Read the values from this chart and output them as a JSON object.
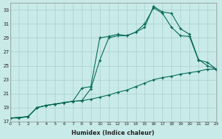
{
  "bg_color": "#c8eae8",
  "grid_color": "#a8ceca",
  "line_color": "#006655",
  "xlim": [
    0,
    23
  ],
  "ylim": [
    17,
    34
  ],
  "xticks": [
    0,
    1,
    2,
    3,
    4,
    5,
    6,
    7,
    8,
    9,
    10,
    11,
    12,
    13,
    14,
    15,
    16,
    17,
    18,
    19,
    20,
    21,
    22,
    23
  ],
  "yticks": [
    17,
    19,
    21,
    23,
    25,
    27,
    29,
    31,
    33
  ],
  "xlabel": "Humidex (Indice chaleur)",
  "s1x": [
    0,
    1,
    2,
    3,
    4,
    5,
    6,
    7,
    8,
    9,
    10,
    11,
    12,
    13,
    14,
    15,
    16,
    17,
    18,
    19,
    20,
    21,
    22,
    23
  ],
  "s1y": [
    17.5,
    17.5,
    17.7,
    19.0,
    19.3,
    19.5,
    19.7,
    19.9,
    21.8,
    22.0,
    29.0,
    29.2,
    29.5,
    29.3,
    29.8,
    31.0,
    33.3,
    32.5,
    30.5,
    29.3,
    29.2,
    25.8,
    25.5,
    24.5
  ],
  "s2x": [
    0,
    2,
    3,
    4,
    5,
    6,
    7,
    8,
    9,
    10,
    11,
    12,
    13,
    14,
    15,
    16,
    17,
    18,
    19,
    20,
    21,
    22,
    23
  ],
  "s2y": [
    17.5,
    17.7,
    19.0,
    19.3,
    19.5,
    19.7,
    19.9,
    20.0,
    21.7,
    25.8,
    29.0,
    29.3,
    29.3,
    29.8,
    30.5,
    33.5,
    32.7,
    32.5,
    30.3,
    29.5,
    25.9,
    25.0,
    24.5
  ],
  "s3x": [
    0,
    2,
    3,
    4,
    5,
    6,
    7,
    8,
    9,
    10,
    11,
    12,
    13,
    14,
    15,
    16,
    17,
    18,
    19,
    20,
    21,
    22,
    23
  ],
  "s3y": [
    17.5,
    17.7,
    19.0,
    19.3,
    19.5,
    19.7,
    19.9,
    20.0,
    20.2,
    20.5,
    20.8,
    21.2,
    21.5,
    22.0,
    22.5,
    23.0,
    23.3,
    23.5,
    23.8,
    24.0,
    24.2,
    24.5,
    24.5
  ]
}
